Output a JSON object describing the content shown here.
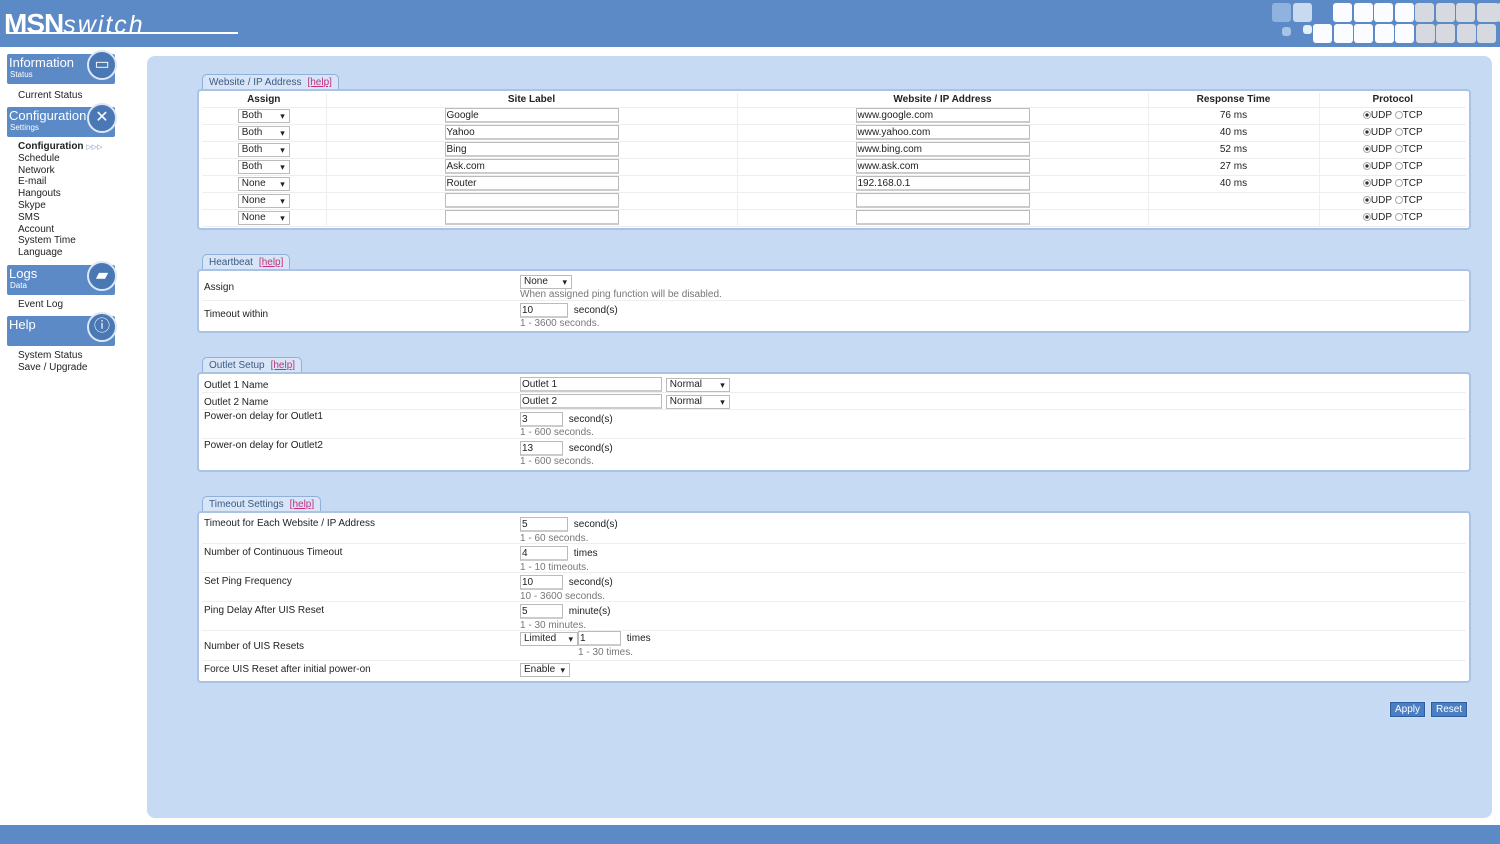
{
  "header": {
    "logo_bold": "MSN",
    "logo_italic": "switch"
  },
  "sidebar": {
    "categories": [
      {
        "title": "Information",
        "sub": "Status"
      },
      {
        "title": "Configuration",
        "sub": "Settings"
      },
      {
        "title": "Logs",
        "sub": "Data"
      },
      {
        "title": "Help",
        "sub": ""
      }
    ],
    "info_links": [
      "Current Status"
    ],
    "config_links": [
      "Configuration",
      "Schedule",
      "Network",
      "E-mail",
      "Hangouts",
      "Skype",
      "SMS",
      "Account",
      "System Time",
      "Language"
    ],
    "active_marker": "▷▷▷",
    "logs_links": [
      "Event Log"
    ],
    "help_links": [
      "System Status",
      "Save / Upgrade"
    ]
  },
  "website": {
    "tab": "Website / IP Address",
    "help": "[help]",
    "headers": [
      "Assign",
      "Site Label",
      "Website / IP Address",
      "Response Time",
      "Protocol"
    ],
    "protocols": [
      "UDP",
      "TCP"
    ],
    "rows": [
      {
        "assign": "Both",
        "label": "Google",
        "address": "www.google.com",
        "time": "76 ms",
        "protocol": "UDP"
      },
      {
        "assign": "Both",
        "label": "Yahoo",
        "address": "www.yahoo.com",
        "time": "40 ms",
        "protocol": "UDP"
      },
      {
        "assign": "Both",
        "label": "Bing",
        "address": "www.bing.com",
        "time": "52 ms",
        "protocol": "UDP"
      },
      {
        "assign": "Both",
        "label": "Ask.com",
        "address": "www.ask.com",
        "time": "27 ms",
        "protocol": "UDP"
      },
      {
        "assign": "None",
        "label": "Router",
        "address": "192.168.0.1",
        "time": "40 ms",
        "protocol": "UDP"
      },
      {
        "assign": "None",
        "label": "",
        "address": "",
        "time": "",
        "protocol": "UDP"
      },
      {
        "assign": "None",
        "label": "",
        "address": "",
        "time": "",
        "protocol": "UDP"
      }
    ]
  },
  "heartbeat": {
    "tab": "Heartbeat",
    "help": "[help]",
    "assign_label": "Assign",
    "assign_value": "None",
    "assign_hint": "When assigned ping function will be disabled.",
    "timeout_label": "Timeout within",
    "timeout_value": "10",
    "timeout_unit": "second(s)",
    "timeout_hint": "1 - 3600 seconds."
  },
  "outlet": {
    "tab": "Outlet Setup",
    "help": "[help]",
    "o1_label": "Outlet 1 Name",
    "o1_value": "Outlet 1",
    "o1_mode": "Normal",
    "o2_label": "Outlet 2 Name",
    "o2_value": "Outlet 2",
    "o2_mode": "Normal",
    "d1_label": "Power-on delay for Outlet1",
    "d1_value": "3",
    "d1_unit": "second(s)",
    "d1_hint": "1 - 600 seconds.",
    "d2_label": "Power-on delay for Outlet2",
    "d2_value": "13",
    "d2_unit": "second(s)",
    "d2_hint": "1 - 600 seconds."
  },
  "timeout": {
    "tab": "Timeout Settings",
    "help": "[help]",
    "rows": [
      {
        "label": "Timeout for Each Website / IP Address",
        "value": "5",
        "unit": "second(s)",
        "hint": "1 - 60 seconds."
      },
      {
        "label": "Number of Continuous Timeout",
        "value": "4",
        "unit": "times",
        "hint": "1 - 10 timeouts."
      },
      {
        "label": "Set Ping Frequency",
        "value": "10",
        "unit": "second(s)",
        "hint": "10 - 3600 seconds."
      },
      {
        "label": "Ping Delay After UIS Reset",
        "value": "5",
        "unit": "minute(s)",
        "hint": "1 - 30 minutes."
      }
    ],
    "resets_label": "Number of UIS Resets",
    "resets_mode": "Limited",
    "resets_value": "1",
    "resets_unit": "times",
    "resets_hint": "1 - 30 times.",
    "force_label": "Force UIS Reset after initial power-on",
    "force_value": "Enable"
  },
  "buttons": {
    "apply": "Apply",
    "reset": "Reset"
  }
}
